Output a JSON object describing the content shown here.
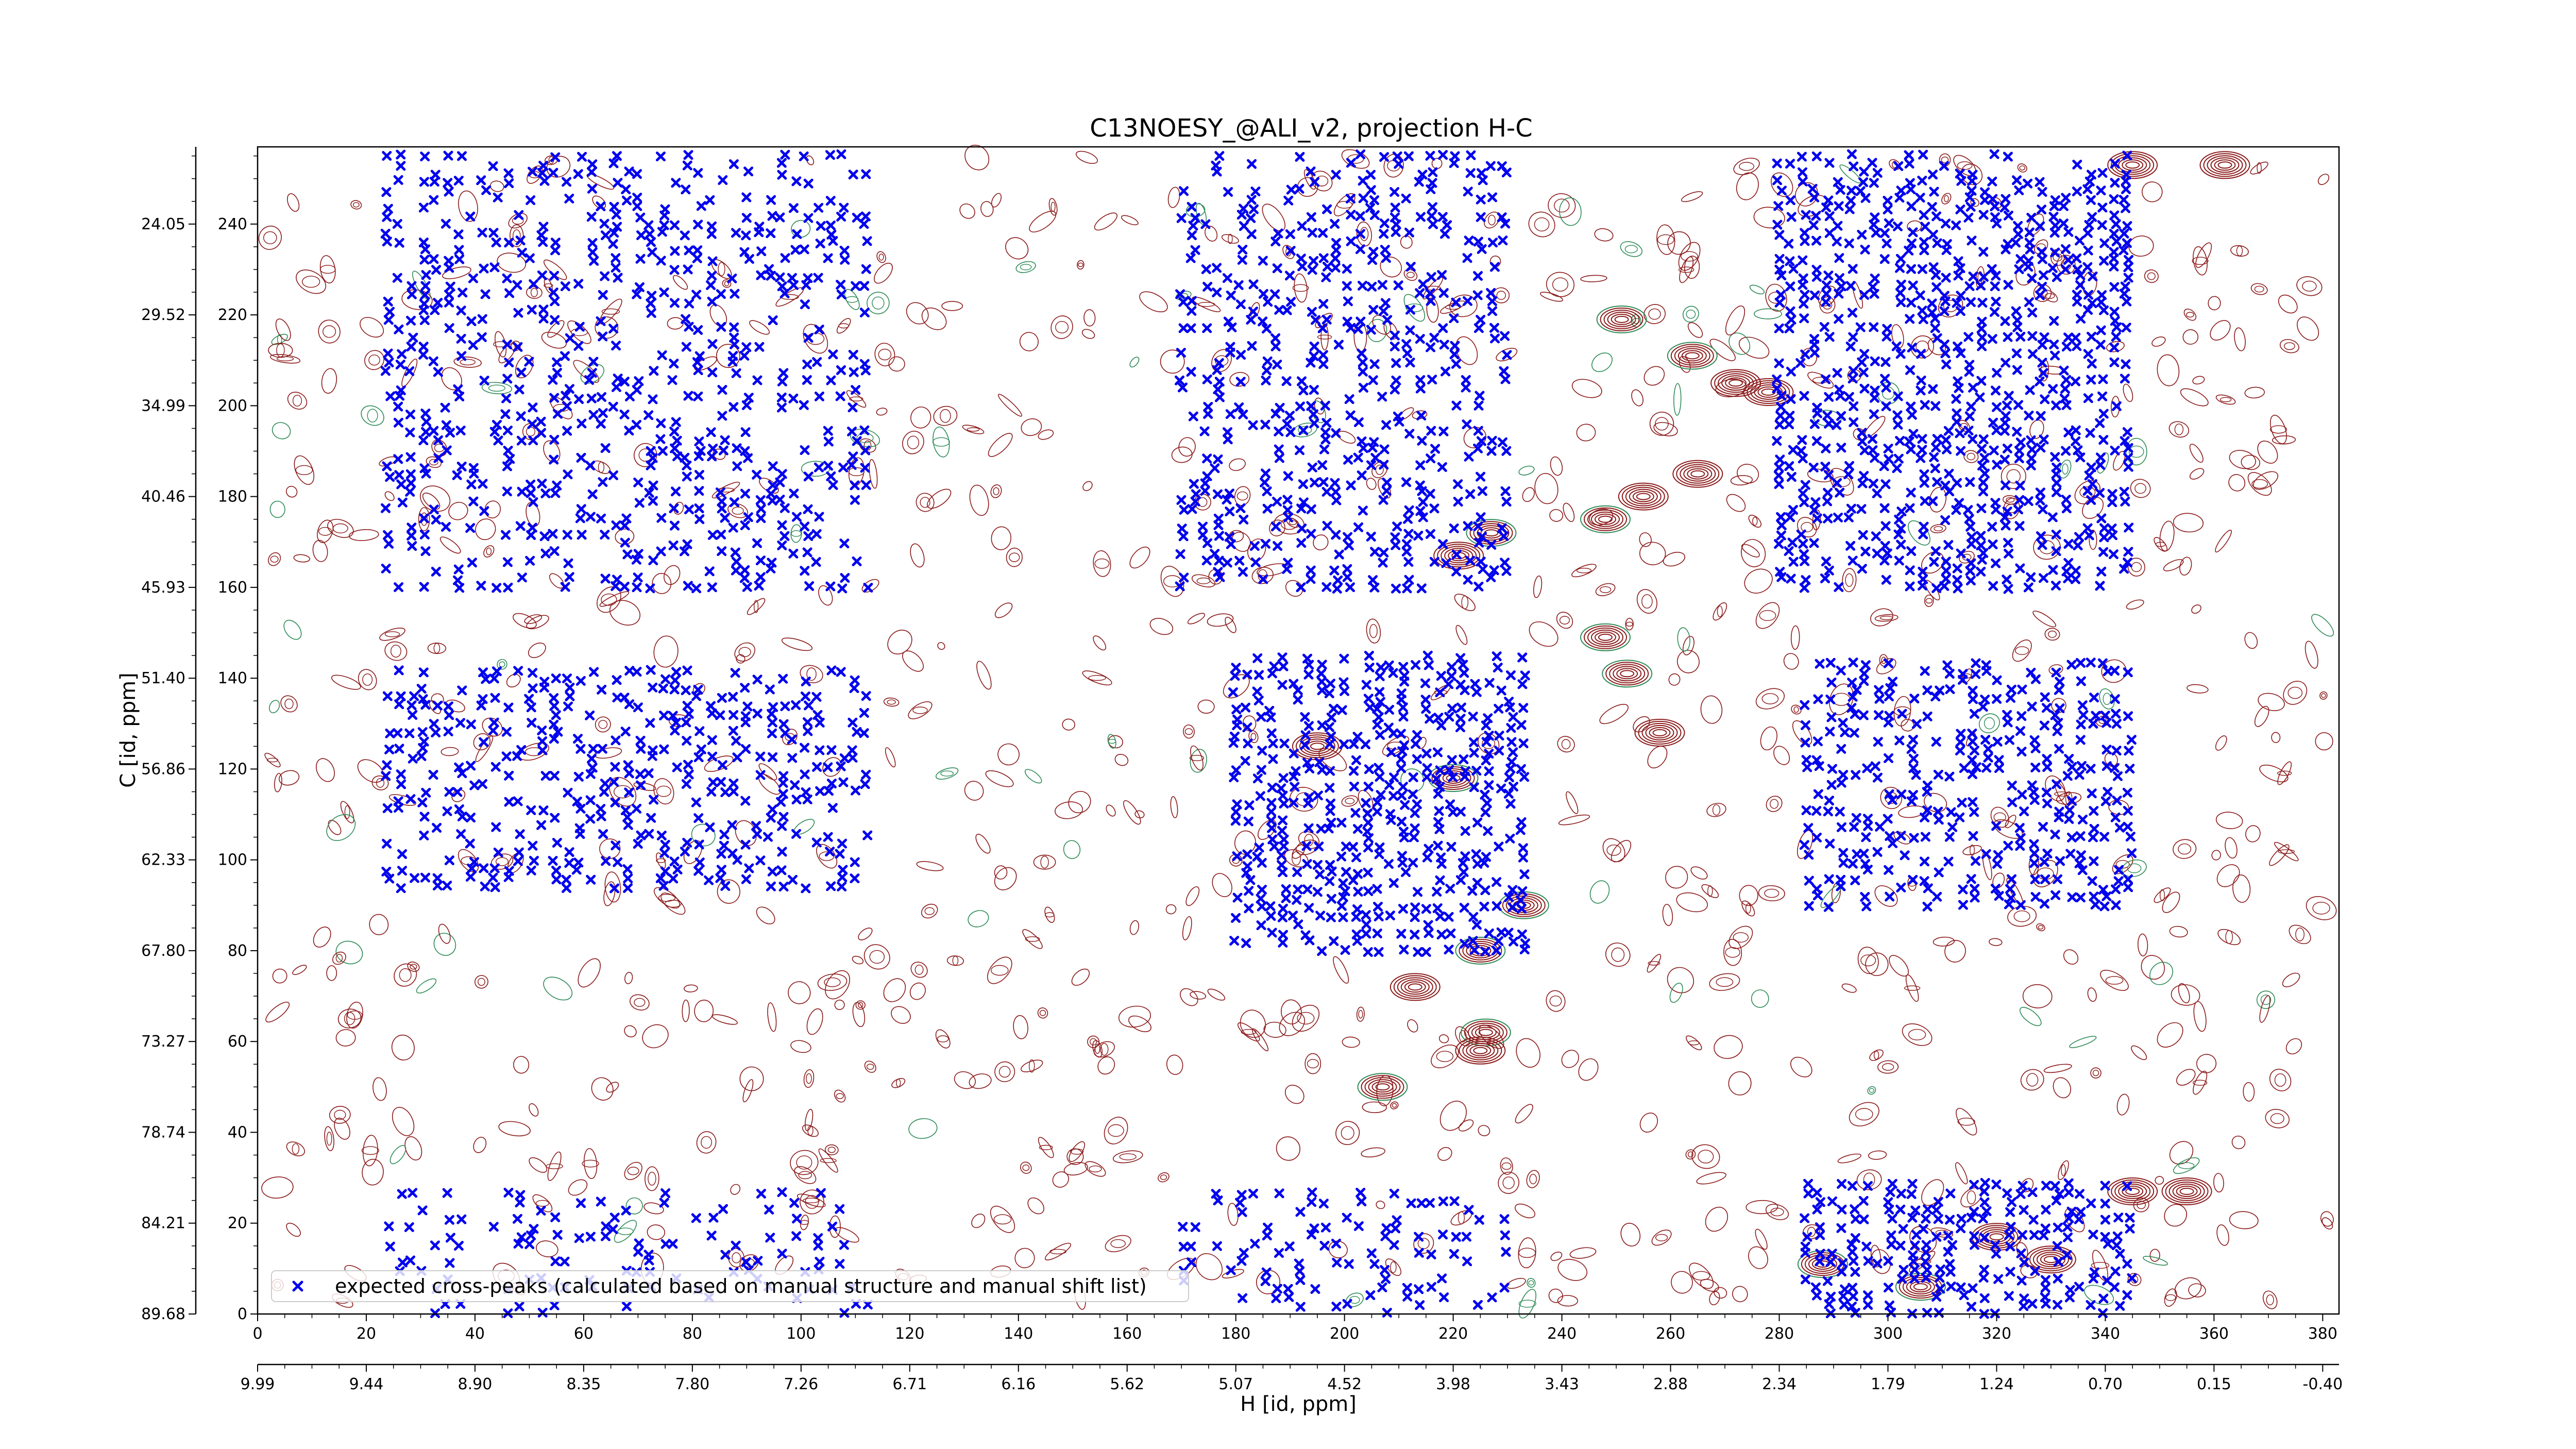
{
  "chart_data": {
    "type": "scatter",
    "title": "C13NOESY_@ALI_v2, projection H-C",
    "xlabel_bottom": "H [id, ppm]",
    "ylabel_left": "C [id, ppm]",
    "x_index_ticks": [
      "0",
      "20",
      "40",
      "60",
      "80",
      "100",
      "120",
      "140",
      "160",
      "180",
      "200",
      "220",
      "240",
      "260",
      "280",
      "300",
      "320",
      "340",
      "360",
      "380"
    ],
    "x_ppm_ticks": [
      "9.99",
      "9.44",
      "8.90",
      "8.35",
      "7.80",
      "7.26",
      "6.71",
      "6.16",
      "5.62",
      "5.07",
      "4.52",
      "3.98",
      "3.43",
      "2.88",
      "2.34",
      "1.79",
      "1.24",
      "0.70",
      "0.15",
      "-0.40"
    ],
    "y_index_ticks": [
      "0",
      "20",
      "40",
      "60",
      "80",
      "100",
      "120",
      "140",
      "160",
      "180",
      "200",
      "220",
      "240"
    ],
    "y_ppm_ticks": [
      "89.68",
      "84.21",
      "78.74",
      "73.27",
      "67.80",
      "62.33",
      "56.86",
      "51.40",
      "45.93",
      "40.46",
      "34.99",
      "29.52",
      "24.05"
    ],
    "xlim": [
      0,
      383
    ],
    "ylim": [
      0,
      257
    ],
    "legend": {
      "position": "bottom-left",
      "label": "expected cross-peaks (calculated based on manual structure and manual shift list)"
    },
    "series": [
      {
        "name": "expected cross-peaks (calculated based on manual structure and manual shift list)",
        "color": "#0000ee",
        "marker": "x",
        "clusters": [
          {
            "x": [
              24,
              112
            ],
            "y": [
              160,
              255
            ],
            "density": 0.55
          },
          {
            "x": [
              24,
              112
            ],
            "y": [
              94,
              142
            ],
            "density": 0.6
          },
          {
            "x": [
              24,
              112
            ],
            "y": [
              0,
              28
            ],
            "density": 0.35
          },
          {
            "x": [
              170,
              230
            ],
            "y": [
              160,
              255
            ],
            "density": 0.6
          },
          {
            "x": [
              180,
              235
            ],
            "y": [
              80,
              145
            ],
            "density": 0.8
          },
          {
            "x": [
              170,
              230
            ],
            "y": [
              0,
              28
            ],
            "density": 0.4
          },
          {
            "x": [
              280,
              345
            ],
            "y": [
              160,
              255
            ],
            "density": 0.85
          },
          {
            "x": [
              285,
              345
            ],
            "y": [
              90,
              145
            ],
            "density": 0.7
          },
          {
            "x": [
              285,
              345
            ],
            "y": [
              0,
              30
            ],
            "density": 0.85
          }
        ]
      }
    ],
    "contours": {
      "positive_color": "#8b1a1a",
      "negative_color": "#2e8b57",
      "strong_peaks": [
        {
          "x": 251,
          "y": 219
        },
        {
          "x": 264,
          "y": 211
        },
        {
          "x": 272,
          "y": 205
        },
        {
          "x": 278,
          "y": 203
        },
        {
          "x": 265,
          "y": 185
        },
        {
          "x": 255,
          "y": 180
        },
        {
          "x": 248,
          "y": 175
        },
        {
          "x": 227,
          "y": 172
        },
        {
          "x": 221,
          "y": 167
        },
        {
          "x": 248,
          "y": 149
        },
        {
          "x": 252,
          "y": 141
        },
        {
          "x": 258,
          "y": 128
        },
        {
          "x": 195,
          "y": 125
        },
        {
          "x": 220,
          "y": 118
        },
        {
          "x": 233,
          "y": 90
        },
        {
          "x": 225,
          "y": 80
        },
        {
          "x": 213,
          "y": 72
        },
        {
          "x": 226,
          "y": 62
        },
        {
          "x": 225,
          "y": 58
        },
        {
          "x": 207,
          "y": 50
        },
        {
          "x": 288,
          "y": 11
        },
        {
          "x": 306,
          "y": 6
        },
        {
          "x": 345,
          "y": 27
        },
        {
          "x": 355,
          "y": 27
        },
        {
          "x": 362,
          "y": 253
        },
        {
          "x": 345,
          "y": 253
        },
        {
          "x": 330,
          "y": 12
        },
        {
          "x": 320,
          "y": 17
        }
      ]
    }
  }
}
